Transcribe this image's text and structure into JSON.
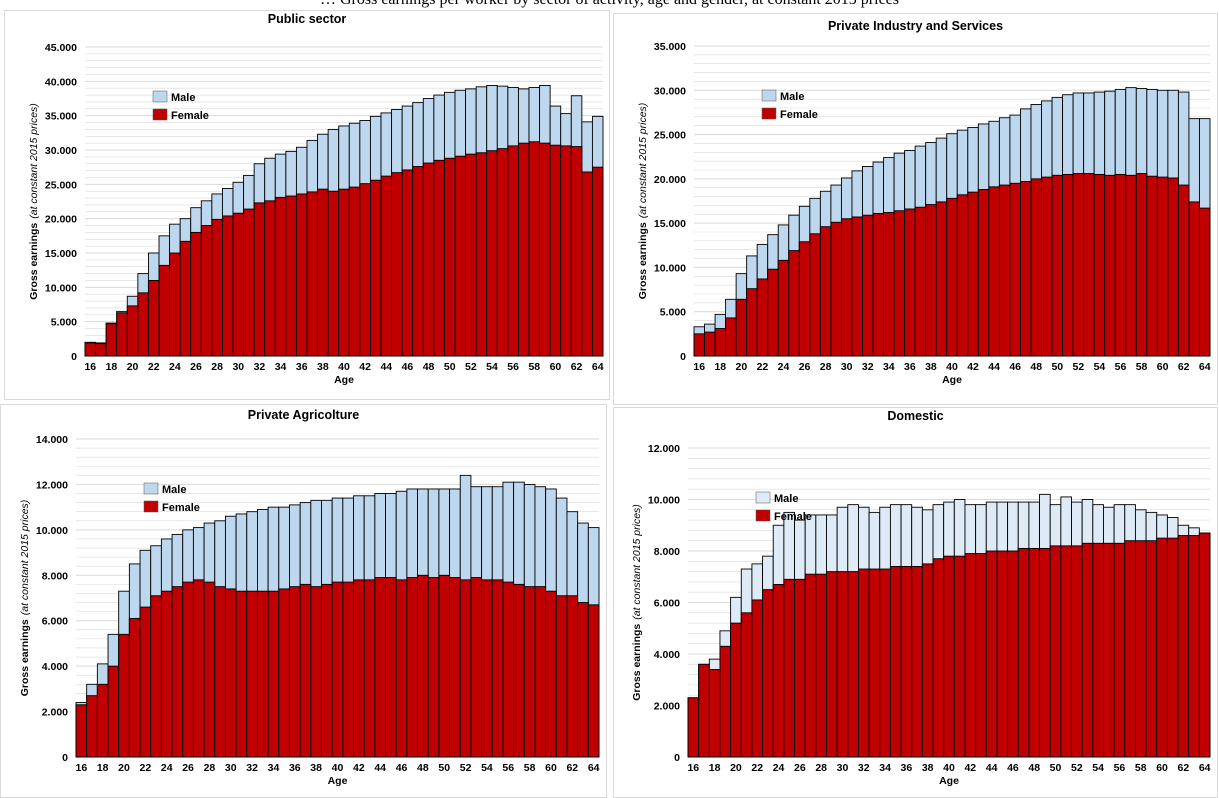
{
  "caption": "… Gross earnings per worker by sector of activity, age and gender, at constant 2015 prices",
  "colors": {
    "male": "#bdd7ee",
    "male_domestic": "#deebf7",
    "female": "#c00000",
    "edge": "#000000",
    "grid": "#d9d9d9"
  },
  "chart_data": [
    {
      "type": "bar",
      "title": "Public sector",
      "xlabel": "Age",
      "ylabel": "Gross earnings",
      "ylabel_note": "(at constant 2015 prices)",
      "ylim": [
        0,
        45000
      ],
      "yticks": [
        0,
        5000,
        10000,
        15000,
        20000,
        25000,
        30000,
        35000,
        40000,
        45000
      ],
      "ytick_labels": [
        "0",
        "5.000",
        "10.000",
        "15.000",
        "20.000",
        "25.000",
        "30.000",
        "35.000",
        "40.000",
        "45.000"
      ],
      "categories": [
        "16",
        "17",
        "18",
        "19",
        "20",
        "21",
        "22",
        "23",
        "24",
        "25",
        "26",
        "27",
        "28",
        "29",
        "30",
        "31",
        "32",
        "33",
        "34",
        "35",
        "36",
        "37",
        "38",
        "39",
        "40",
        "41",
        "42",
        "43",
        "44",
        "45",
        "46",
        "47",
        "48",
        "49",
        "50",
        "51",
        "52",
        "53",
        "54",
        "55",
        "56",
        "57",
        "58",
        "59",
        "60",
        "61",
        "62",
        "63",
        "64"
      ],
      "xtick_labels": [
        "16",
        "",
        "18",
        "",
        "20",
        "",
        "22",
        "",
        "24",
        "",
        "26",
        "",
        "28",
        "",
        "30",
        "",
        "32",
        "",
        "34",
        "",
        "36",
        "",
        "38",
        "",
        "40",
        "",
        "42",
        "",
        "44",
        "",
        "46",
        "",
        "48",
        "",
        "50",
        "",
        "52",
        "",
        "54",
        "",
        "56",
        "",
        "58",
        "",
        "60",
        "",
        "62",
        "",
        "64"
      ],
      "legend": [
        "Male",
        "Female"
      ],
      "legend_position": "top-left",
      "series": [
        {
          "name": "Male",
          "values": [
            2000,
            1900,
            4800,
            6500,
            8700,
            12000,
            15000,
            17500,
            19200,
            20000,
            21600,
            22600,
            23600,
            24400,
            25300,
            26300,
            28000,
            28800,
            29400,
            29800,
            30400,
            31400,
            32300,
            33000,
            33500,
            33900,
            34300,
            34900,
            35400,
            35900,
            36400,
            36900,
            37500,
            38000,
            38400,
            38700,
            38900,
            39200,
            39400,
            39300,
            39100,
            38900,
            39100,
            39400,
            36400,
            35300,
            37900,
            34100,
            34900
          ]
        },
        {
          "name": "Female",
          "values": [
            1900,
            1800,
            4700,
            6300,
            7300,
            9200,
            11000,
            13200,
            15000,
            16700,
            18000,
            19000,
            19900,
            20400,
            20800,
            21400,
            22300,
            22600,
            23100,
            23300,
            23600,
            23900,
            24300,
            24000,
            24300,
            24600,
            25100,
            25600,
            26200,
            26700,
            27100,
            27600,
            28100,
            28500,
            28800,
            29100,
            29400,
            29600,
            29900,
            30200,
            30600,
            31000,
            31200,
            31000,
            30700,
            30600,
            30500,
            26800,
            27500
          ]
        }
      ]
    },
    {
      "type": "bar",
      "title": "Private Industry and Services",
      "xlabel": "Age",
      "ylabel": "Gross earnings",
      "ylabel_note": "(at constant 2015 prices)",
      "ylim": [
        0,
        35000
      ],
      "yticks": [
        0,
        5000,
        10000,
        15000,
        20000,
        25000,
        30000,
        35000
      ],
      "ytick_labels": [
        "0",
        "5.000",
        "10.000",
        "15.000",
        "20.000",
        "25.000",
        "30.000",
        "35.000"
      ],
      "categories": [
        "16",
        "17",
        "18",
        "19",
        "20",
        "21",
        "22",
        "23",
        "24",
        "25",
        "26",
        "27",
        "28",
        "29",
        "30",
        "31",
        "32",
        "33",
        "34",
        "35",
        "36",
        "37",
        "38",
        "39",
        "40",
        "41",
        "42",
        "43",
        "44",
        "45",
        "46",
        "47",
        "48",
        "49",
        "50",
        "51",
        "52",
        "53",
        "54",
        "55",
        "56",
        "57",
        "58",
        "59",
        "60",
        "61",
        "62",
        "63",
        "64"
      ],
      "xtick_labels": [
        "16",
        "",
        "18",
        "",
        "20",
        "",
        "22",
        "",
        "24",
        "",
        "26",
        "",
        "28",
        "",
        "30",
        "",
        "32",
        "",
        "34",
        "",
        "36",
        "",
        "38",
        "",
        "40",
        "",
        "42",
        "",
        "44",
        "",
        "46",
        "",
        "48",
        "",
        "50",
        "",
        "52",
        "",
        "54",
        "",
        "56",
        "",
        "58",
        "",
        "60",
        "",
        "62",
        "",
        "64"
      ],
      "legend": [
        "Male",
        "Female"
      ],
      "legend_position": "top-left",
      "series": [
        {
          "name": "Male",
          "values": [
            3300,
            3600,
            4700,
            6400,
            9300,
            11300,
            12600,
            13700,
            14800,
            15900,
            16900,
            17800,
            18600,
            19300,
            20100,
            20900,
            21400,
            21900,
            22400,
            22900,
            23200,
            23700,
            24100,
            24600,
            25100,
            25500,
            25800,
            26200,
            26500,
            26900,
            27200,
            27900,
            28400,
            28800,
            29200,
            29500,
            29700,
            29700,
            29800,
            29900,
            30100,
            30300,
            30200,
            30100,
            30000,
            30000,
            29800,
            26800,
            26800
          ]
        },
        {
          "name": "Female",
          "values": [
            2500,
            2700,
            3100,
            4300,
            6400,
            7600,
            8700,
            9800,
            10800,
            11900,
            12900,
            13800,
            14600,
            15100,
            15500,
            15700,
            15900,
            16100,
            16200,
            16400,
            16600,
            16800,
            17100,
            17400,
            17800,
            18200,
            18500,
            18800,
            19100,
            19300,
            19500,
            19700,
            20000,
            20200,
            20400,
            20500,
            20600,
            20600,
            20500,
            20400,
            20500,
            20400,
            20600,
            20300,
            20200,
            20100,
            19300,
            17400,
            16700
          ]
        }
      ]
    },
    {
      "type": "bar",
      "title": "Private Agricolture",
      "xlabel": "Age",
      "ylabel": "Gross earnings",
      "ylabel_note": "(at constant 2015 prices)",
      "ylim": [
        0,
        14000
      ],
      "yticks": [
        0,
        2000,
        4000,
        6000,
        8000,
        10000,
        12000,
        14000
      ],
      "ytick_labels": [
        "0",
        "2.000",
        "4.000",
        "6.000",
        "8.000",
        "10.000",
        "12.000",
        "14.000"
      ],
      "categories": [
        "16",
        "17",
        "18",
        "19",
        "20",
        "21",
        "22",
        "23",
        "24",
        "25",
        "26",
        "27",
        "28",
        "29",
        "30",
        "31",
        "32",
        "33",
        "34",
        "35",
        "36",
        "37",
        "38",
        "39",
        "40",
        "41",
        "42",
        "43",
        "44",
        "45",
        "46",
        "47",
        "48",
        "49",
        "50",
        "51",
        "52",
        "53",
        "54",
        "55",
        "56",
        "57",
        "58",
        "59",
        "60",
        "61",
        "62",
        "63",
        "64"
      ],
      "xtick_labels": [
        "16",
        "",
        "18",
        "",
        "20",
        "",
        "22",
        "",
        "24",
        "",
        "26",
        "",
        "28",
        "",
        "30",
        "",
        "32",
        "",
        "34",
        "",
        "36",
        "",
        "38",
        "",
        "40",
        "",
        "42",
        "",
        "44",
        "",
        "46",
        "",
        "48",
        "",
        "50",
        "",
        "52",
        "",
        "54",
        "",
        "56",
        "",
        "58",
        "",
        "60",
        "",
        "62",
        "",
        "64"
      ],
      "legend": [
        "Male",
        "Female"
      ],
      "legend_position": "top-left",
      "series": [
        {
          "name": "Male",
          "values": [
            2400,
            3200,
            4100,
            5400,
            7300,
            8500,
            9100,
            9300,
            9600,
            9800,
            10000,
            10100,
            10300,
            10400,
            10600,
            10700,
            10800,
            10900,
            11000,
            11000,
            11100,
            11200,
            11300,
            11300,
            11400,
            11400,
            11500,
            11500,
            11600,
            11600,
            11700,
            11800,
            11800,
            11800,
            11800,
            11800,
            12400,
            11900,
            11900,
            11900,
            12100,
            12100,
            12000,
            11900,
            11800,
            11400,
            10800,
            10300,
            10100
          ]
        },
        {
          "name": "Female",
          "values": [
            2300,
            2700,
            3200,
            4000,
            5400,
            6100,
            6600,
            7100,
            7300,
            7500,
            7700,
            7800,
            7700,
            7500,
            7400,
            7300,
            7300,
            7300,
            7300,
            7400,
            7500,
            7600,
            7500,
            7600,
            7700,
            7700,
            7800,
            7800,
            7900,
            7900,
            7800,
            7900,
            8000,
            7900,
            8000,
            7900,
            7800,
            7900,
            7800,
            7800,
            7700,
            7600,
            7500,
            7500,
            7300,
            7100,
            7100,
            6800,
            6700
          ]
        }
      ]
    },
    {
      "type": "bar",
      "title": "Domestic",
      "xlabel": "Age",
      "ylabel": "Gross earnings",
      "ylabel_note": "(at constant 2015 prices)",
      "ylim": [
        0,
        12000
      ],
      "yticks": [
        0,
        2000,
        4000,
        6000,
        8000,
        10000,
        12000
      ],
      "ytick_labels": [
        "0",
        "2.000",
        "4.000",
        "6.000",
        "8.000",
        "10.000",
        "12.000"
      ],
      "categories": [
        "16",
        "17",
        "18",
        "19",
        "20",
        "21",
        "22",
        "23",
        "24",
        "25",
        "26",
        "27",
        "28",
        "29",
        "30",
        "31",
        "32",
        "33",
        "34",
        "35",
        "36",
        "37",
        "38",
        "39",
        "40",
        "41",
        "42",
        "43",
        "44",
        "45",
        "46",
        "47",
        "48",
        "49",
        "50",
        "51",
        "52",
        "53",
        "54",
        "55",
        "56",
        "57",
        "58",
        "59",
        "60",
        "61",
        "62",
        "63",
        "64"
      ],
      "xtick_labels": [
        "16",
        "",
        "18",
        "",
        "20",
        "",
        "22",
        "",
        "24",
        "",
        "26",
        "",
        "28",
        "",
        "30",
        "",
        "32",
        "",
        "34",
        "",
        "36",
        "",
        "38",
        "",
        "40",
        "",
        "42",
        "",
        "44",
        "",
        "46",
        "",
        "48",
        "",
        "50",
        "",
        "52",
        "",
        "54",
        "",
        "56",
        "",
        "58",
        "",
        "60",
        "",
        "62",
        "",
        "64"
      ],
      "legend": [
        "Male",
        "Female"
      ],
      "legend_position": "top-left",
      "series": [
        {
          "name": "Male",
          "values": [
            2300,
            3600,
            3800,
            4900,
            6200,
            7300,
            7500,
            7800,
            9000,
            9500,
            9200,
            9400,
            9400,
            9400,
            9700,
            9800,
            9700,
            9500,
            9700,
            9800,
            9800,
            9700,
            9600,
            9800,
            9900,
            10000,
            9800,
            9800,
            9900,
            9900,
            9900,
            9900,
            9900,
            10200,
            9800,
            10100,
            9900,
            10000,
            9800,
            9700,
            9800,
            9800,
            9600,
            9500,
            9400,
            9300,
            9000,
            8900,
            8700
          ]
        },
        {
          "name": "Female",
          "values": [
            2300,
            3600,
            3400,
            4300,
            5200,
            5600,
            6100,
            6500,
            6700,
            6900,
            6900,
            7100,
            7100,
            7200,
            7200,
            7200,
            7300,
            7300,
            7300,
            7400,
            7400,
            7400,
            7500,
            7700,
            7800,
            7800,
            7900,
            7900,
            8000,
            8000,
            8000,
            8100,
            8100,
            8100,
            8200,
            8200,
            8200,
            8300,
            8300,
            8300,
            8300,
            8400,
            8400,
            8400,
            8500,
            8500,
            8600,
            8600,
            8700
          ]
        }
      ]
    }
  ]
}
